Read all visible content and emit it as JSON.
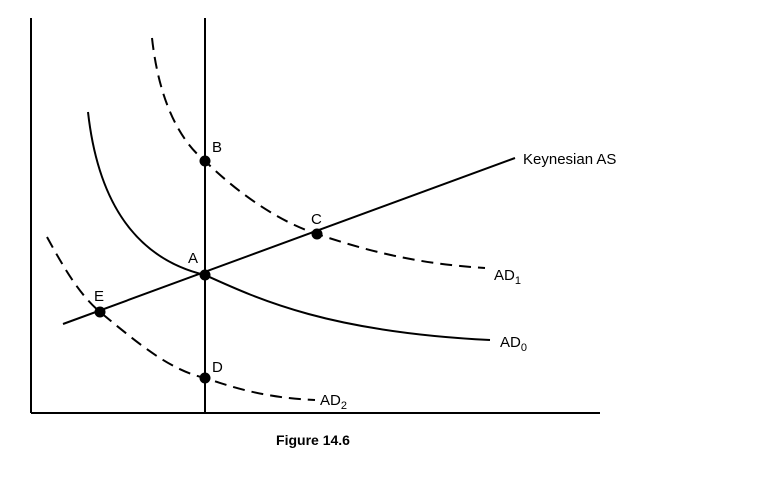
{
  "caption": "Figure 14.6",
  "supply_curve": {
    "label": "Keynesian AS"
  },
  "demand_curves": [
    {
      "label": "AD",
      "subscript": "0"
    },
    {
      "label": "AD",
      "subscript": "1"
    },
    {
      "label": "AD",
      "subscript": "2"
    }
  ],
  "points": [
    {
      "label": "A"
    },
    {
      "label": "B"
    },
    {
      "label": "C"
    },
    {
      "label": "D"
    },
    {
      "label": "E"
    }
  ]
}
